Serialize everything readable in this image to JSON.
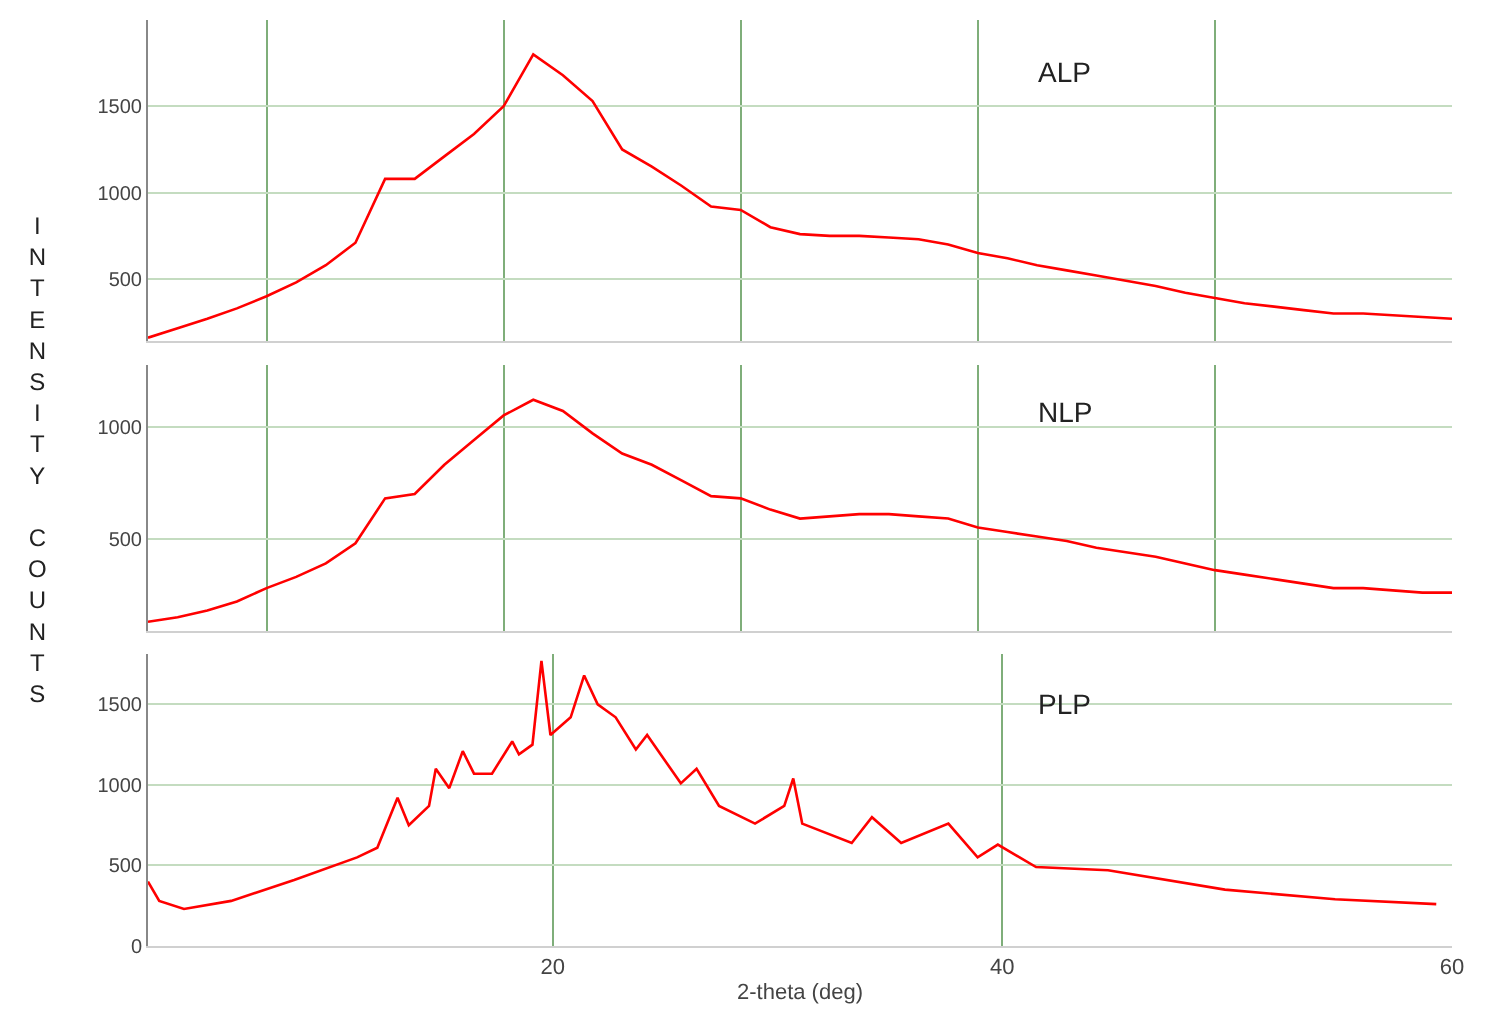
{
  "chart_data": [
    {
      "type": "line",
      "annotations": [
        "ALP"
      ],
      "tick_labels": "y",
      "grid": true,
      "ylim": [
        140,
        2000
      ],
      "yticks": [
        500,
        1000,
        1500
      ],
      "categories": [
        null,
        null,
        null,
        null,
        null,
        null,
        null,
        null,
        null,
        null,
        null,
        null,
        null,
        null,
        null,
        null,
        null,
        null,
        null,
        null,
        null,
        null,
        null,
        null,
        null,
        null,
        null,
        null,
        null,
        null,
        null,
        null,
        null,
        null,
        null,
        null,
        null,
        null,
        null,
        null,
        null,
        null,
        null,
        null,
        null
      ],
      "series": [
        {
          "color": "#ff0000",
          "values": [
            160,
            215,
            270,
            330,
            400,
            480,
            580,
            710,
            1080,
            1080,
            1210,
            1340,
            1500,
            1800,
            1680,
            1530,
            1250,
            1150,
            1040,
            920,
            900,
            800,
            760,
            750,
            750,
            740,
            730,
            700,
            650,
            620,
            580,
            550,
            520,
            490,
            460,
            420,
            390,
            360,
            340,
            320,
            300,
            300,
            290,
            280,
            270
          ]
        }
      ]
    },
    {
      "type": "line",
      "annotations": [
        "NLP"
      ],
      "ylabel": "INTENSITY COUNTS",
      "tick_labels": "y",
      "grid": true,
      "ylim": [
        90,
        1275
      ],
      "yticks": [
        500,
        1000
      ],
      "categories": [
        null,
        null,
        null,
        null,
        null,
        null,
        null,
        null,
        null,
        null,
        null,
        null,
        null,
        null,
        null,
        null,
        null,
        null,
        null,
        null,
        null,
        null,
        null,
        null,
        null,
        null,
        null,
        null,
        null,
        null,
        null,
        null,
        null,
        null,
        null,
        null,
        null,
        null,
        null,
        null,
        null,
        null,
        null,
        null,
        null
      ],
      "series": [
        {
          "color": "#ff0000",
          "values": [
            130,
            150,
            180,
            220,
            280,
            330,
            390,
            480,
            680,
            700,
            830,
            940,
            1050,
            1120,
            1070,
            970,
            880,
            830,
            760,
            690,
            680,
            630,
            590,
            600,
            610,
            610,
            600,
            590,
            550,
            530,
            510,
            490,
            460,
            440,
            420,
            390,
            360,
            340,
            320,
            300,
            280,
            280,
            270,
            260,
            260
          ]
        }
      ]
    },
    {
      "type": "line",
      "annotations": [
        "PLP"
      ],
      "xlabel": "2-theta (deg)",
      "grid": true,
      "xlim": [
        2,
        60
      ],
      "xticks": [
        20,
        40,
        60
      ],
      "ylim": [
        0,
        1810
      ],
      "yticks": [
        0,
        500,
        1000,
        1500
      ],
      "x": [
        2.0,
        2.5,
        3.6,
        5.7,
        8.5,
        11.3,
        12.2,
        13.1,
        13.6,
        14.5,
        14.8,
        15.4,
        16.0,
        16.5,
        17.3,
        18.2,
        18.5,
        19.1,
        19.5,
        19.9,
        20.8,
        21.4,
        22.0,
        22.8,
        23.7,
        24.2,
        25.7,
        26.4,
        27.4,
        29.0,
        30.3,
        30.7,
        31.1,
        33.3,
        34.2,
        35.5,
        37.6,
        38.9,
        39.8,
        41.5,
        44.7,
        49.9,
        54.8,
        59.3
      ],
      "series": [
        {
          "color": "#ff0000",
          "values": [
            400,
            280,
            230,
            280,
            410,
            550,
            610,
            920,
            750,
            870,
            1100,
            980,
            1210,
            1070,
            1070,
            1270,
            1190,
            1250,
            1770,
            1310,
            1420,
            1680,
            1500,
            1420,
            1220,
            1310,
            1010,
            1100,
            870,
            760,
            870,
            1040,
            760,
            640,
            800,
            640,
            760,
            550,
            630,
            490,
            470,
            350,
            290,
            260
          ]
        }
      ]
    }
  ]
}
